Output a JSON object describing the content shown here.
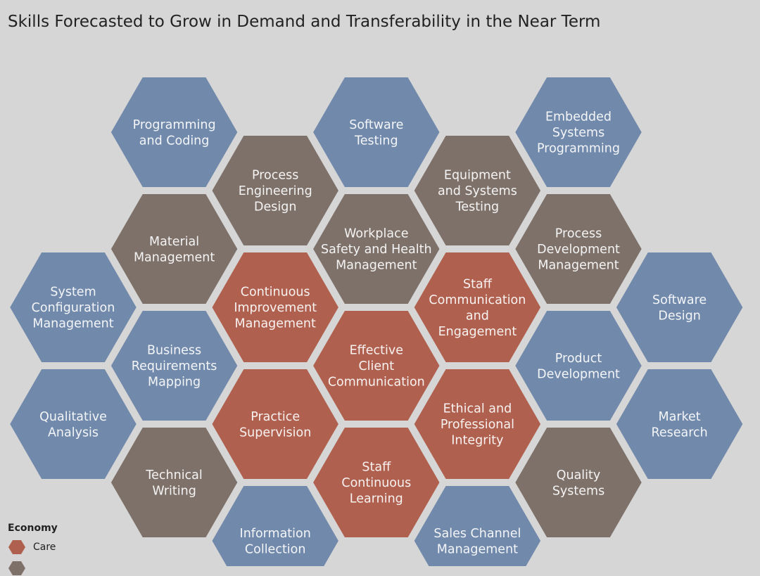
{
  "title": "Skills Forecasted to Grow in Demand and Transferability in the Near Term",
  "colors": {
    "blue": "#7189ab",
    "brown": "#7e716a",
    "red": "#b0604e",
    "stroke": "#d6d6d6"
  },
  "legend": {
    "title": "Economy",
    "items": [
      {
        "label": "Care",
        "color": "red"
      },
      {
        "label": "",
        "color": "brown"
      }
    ]
  },
  "hexagons": [
    {
      "col": 1,
      "row": 0,
      "color": "blue",
      "lines": [
        "Programming",
        "and Coding"
      ]
    },
    {
      "col": 3,
      "row": 0,
      "color": "blue",
      "lines": [
        "Software",
        "Testing"
      ]
    },
    {
      "col": 5,
      "row": 0,
      "color": "blue",
      "lines": [
        "Embedded",
        "Systems",
        "Programming"
      ]
    },
    {
      "col": 2,
      "row": 1,
      "color": "brown",
      "lines": [
        "Process",
        "Engineering",
        "Design"
      ]
    },
    {
      "col": 4,
      "row": 1,
      "color": "brown",
      "lines": [
        "Equipment",
        "and Systems",
        "Testing"
      ]
    },
    {
      "col": 1,
      "row": 2,
      "color": "brown",
      "lines": [
        "Material",
        "Management"
      ]
    },
    {
      "col": 3,
      "row": 2,
      "color": "brown",
      "lines": [
        "Workplace",
        "Safety and Health",
        "Management"
      ]
    },
    {
      "col": 5,
      "row": 2,
      "color": "brown",
      "lines": [
        "Process",
        "Development",
        "Management"
      ]
    },
    {
      "col": 0,
      "row": 3,
      "color": "blue",
      "lines": [
        "System",
        "Configuration",
        "Management"
      ]
    },
    {
      "col": 2,
      "row": 3,
      "color": "red",
      "lines": [
        "Continuous",
        "Improvement",
        "Management"
      ]
    },
    {
      "col": 4,
      "row": 3,
      "color": "red",
      "lines": [
        "Staff",
        "Communication",
        "and",
        "Engagement"
      ]
    },
    {
      "col": 6,
      "row": 3,
      "color": "blue",
      "lines": [
        "Software",
        "Design"
      ]
    },
    {
      "col": 1,
      "row": 4,
      "color": "blue",
      "lines": [
        "Business",
        "Requirements",
        "Mapping"
      ]
    },
    {
      "col": 3,
      "row": 4,
      "color": "red",
      "lines": [
        "Effective",
        "Client",
        "Communication"
      ]
    },
    {
      "col": 5,
      "row": 4,
      "color": "blue",
      "lines": [
        "Product",
        "Development"
      ]
    },
    {
      "col": 0,
      "row": 5,
      "color": "blue",
      "lines": [
        "Qualitative",
        "Analysis"
      ]
    },
    {
      "col": 2,
      "row": 5,
      "color": "red",
      "lines": [
        "Practice",
        "Supervision"
      ]
    },
    {
      "col": 4,
      "row": 5,
      "color": "red",
      "lines": [
        "Ethical and",
        "Professional",
        "Integrity"
      ]
    },
    {
      "col": 6,
      "row": 5,
      "color": "blue",
      "lines": [
        "Market",
        "Research"
      ]
    },
    {
      "col": 1,
      "row": 6,
      "color": "brown",
      "lines": [
        "Technical",
        "Writing"
      ]
    },
    {
      "col": 3,
      "row": 6,
      "color": "red",
      "lines": [
        "Staff",
        "Continuous",
        "Learning"
      ]
    },
    {
      "col": 5,
      "row": 6,
      "color": "brown",
      "lines": [
        "Quality",
        "Systems"
      ]
    },
    {
      "col": 2,
      "row": 7,
      "color": "blue",
      "lines": [
        "Information",
        "Collection"
      ]
    },
    {
      "col": 4,
      "row": 7,
      "color": "blue",
      "lines": [
        "Sales Channel",
        "Management"
      ]
    }
  ]
}
